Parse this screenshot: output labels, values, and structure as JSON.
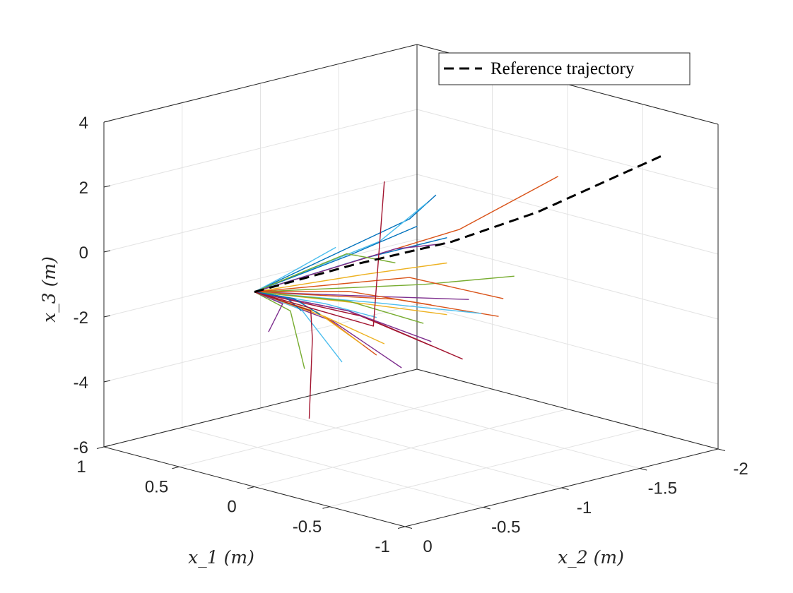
{
  "chart_data": {
    "type": "line3d",
    "xlabel": "x_1 (m)",
    "ylabel": "x_2 (m)",
    "zlabel": "x_3 (m)",
    "axes": {
      "x1": {
        "lim": [
          -1,
          1
        ],
        "ticks": [
          1,
          0.5,
          0,
          -0.5,
          -1
        ],
        "tick_labels": [
          "1",
          "0.5",
          "0",
          "-0.5",
          "-1"
        ]
      },
      "x2": {
        "lim": [
          -2,
          0
        ],
        "ticks": [
          0,
          -0.5,
          -1,
          -1.5,
          -2
        ],
        "tick_labels": [
          "0",
          "-0.5",
          "-1",
          "-1.5",
          "-2"
        ]
      },
      "x3": {
        "lim": [
          -6,
          4
        ],
        "ticks": [
          4,
          2,
          0,
          -2,
          -4,
          -6
        ],
        "tick_labels": [
          "4",
          "2",
          "0",
          "-2",
          "-4",
          "-6"
        ]
      }
    },
    "grid": true,
    "legend": {
      "position": "top-right",
      "entries": [
        "Reference trajectory"
      ]
    },
    "reference": {
      "name": "Reference trajectory",
      "color": "#000000",
      "style": "dashed",
      "points": [
        [
          0,
          0,
          0
        ],
        [
          0,
          -0.63,
          0.08
        ],
        [
          0,
          -1.26,
          0.04
        ],
        [
          -0.3,
          -1.52,
          1.01
        ],
        [
          -0.6,
          -2.03,
          2.51
        ]
      ]
    },
    "trajectories": [
      {
        "color": "#D95319",
        "points": [
          [
            0,
            0,
            0
          ],
          [
            0,
            -1.31,
            0.36
          ],
          [
            0,
            -1.94,
            1.24
          ]
        ]
      },
      {
        "color": "#0072BD",
        "points": [
          [
            0,
            0,
            0
          ],
          [
            0,
            -0.99,
            1.06
          ],
          [
            0,
            -1.16,
            1.6
          ]
        ]
      },
      {
        "color": "#4DBEEE",
        "points": [
          [
            0,
            0,
            0
          ],
          [
            0,
            -0.8,
            0.6
          ],
          [
            0,
            -1.1,
            1.42
          ]
        ]
      },
      {
        "color": "#0072BD",
        "points": [
          [
            0,
            0,
            0
          ],
          [
            0,
            -0.6,
            0.4
          ],
          [
            0,
            -1.04,
            0.78
          ]
        ]
      },
      {
        "color": "#0072BD",
        "points": [
          [
            0,
            0,
            0
          ],
          [
            0,
            -0.7,
            0.2
          ],
          [
            0,
            -1.23,
            0.2
          ]
        ]
      },
      {
        "color": "#7E2F8E",
        "points": [
          [
            0,
            0,
            0
          ],
          [
            0,
            -0.9,
            0.25
          ],
          [
            0,
            -1.22,
            0.03
          ]
        ]
      },
      {
        "color": "#4DBEEE",
        "points": [
          [
            0,
            0,
            0
          ],
          [
            0,
            -0.2,
            0.27
          ],
          [
            0,
            -0.52,
            0.75
          ]
        ]
      },
      {
        "color": "#77AC30",
        "points": [
          [
            0,
            0,
            0
          ],
          [
            0,
            -0.59,
            0.47
          ],
          [
            0,
            -0.9,
            -0.18
          ]
        ]
      },
      {
        "color": "#EDB120",
        "points": [
          [
            0,
            0,
            0
          ],
          [
            0,
            -0.7,
            -0.3
          ],
          [
            0,
            -1.23,
            -0.58
          ]
        ]
      },
      {
        "color": "#77AC30",
        "points": [
          [
            0,
            0,
            0
          ],
          [
            0,
            -1.08,
            -1.06
          ],
          [
            0,
            -1.66,
            -1.5
          ]
        ]
      },
      {
        "color": "#D95319",
        "points": [
          [
            0,
            0,
            0
          ],
          [
            0,
            -0.99,
            -0.74
          ],
          [
            0,
            -1.59,
            -2.11
          ]
        ]
      },
      {
        "color": "#7E2F8E",
        "points": [
          [
            0,
            0,
            0
          ],
          [
            0,
            -0.8,
            -1.1
          ],
          [
            0,
            -1.37,
            -1.87
          ]
        ]
      },
      {
        "color": "#D95319",
        "points": [
          [
            0,
            0,
            0
          ],
          [
            0,
            -0.9,
            -1.3
          ],
          [
            0,
            -1.56,
            -2.62
          ]
        ]
      },
      {
        "color": "#4DBEEE",
        "points": [
          [
            0,
            0,
            0
          ],
          [
            0,
            -0.8,
            -1.3
          ],
          [
            0,
            -1.45,
            -2.4
          ]
        ]
      },
      {
        "color": "#EDB120",
        "points": [
          [
            0,
            0,
            0
          ],
          [
            0,
            -0.7,
            -1.2
          ],
          [
            0,
            -1.23,
            -2.17
          ]
        ]
      },
      {
        "color": "#77AC30",
        "points": [
          [
            0,
            0,
            0
          ],
          [
            0,
            -0.6,
            -1.0
          ],
          [
            0,
            -1.08,
            -2.26
          ]
        ]
      },
      {
        "color": "#A2142F",
        "points": [
          [
            0,
            0,
            0
          ],
          [
            0,
            -0.6,
            -1.3
          ],
          [
            0,
            -1.13,
            -3.01
          ]
        ]
      },
      {
        "color": "#A2142F",
        "points": [
          [
            0,
            0,
            0
          ],
          [
            0,
            -0.7,
            -1.6
          ],
          [
            0,
            -1.33,
            -3.66
          ]
        ]
      },
      {
        "color": "#7E2F8E",
        "points": [
          [
            0,
            0,
            0
          ],
          [
            0,
            -0.5,
            -1.5
          ],
          [
            0,
            -0.94,
            -3.46
          ]
        ]
      },
      {
        "color": "#7E2F8E",
        "points": [
          [
            0,
            0,
            0
          ],
          [
            0,
            -0.6,
            -1.3
          ],
          [
            0,
            -1.13,
            -2.88
          ]
        ]
      },
      {
        "color": "#D95319",
        "points": [
          [
            0,
            0,
            0
          ],
          [
            0,
            -0.45,
            -1.3
          ],
          [
            0,
            -0.78,
            -2.88
          ]
        ]
      },
      {
        "color": "#EDB120",
        "points": [
          [
            0,
            0,
            0
          ],
          [
            0,
            -0.4,
            -1.1
          ],
          [
            0,
            -0.69,
            -2.45
          ]
        ]
      },
      {
        "color": "#4DBEEE",
        "points": [
          [
            0,
            0,
            0
          ],
          [
            0,
            -0.3,
            -0.9
          ],
          [
            0,
            -0.56,
            -2.83
          ]
        ]
      },
      {
        "color": "#77AC30",
        "points": [
          [
            0,
            0,
            0
          ],
          [
            0,
            -0.23,
            -0.86
          ],
          [
            0,
            -0.32,
            -2.75
          ]
        ]
      },
      {
        "color": "#7E2F8E",
        "points": [
          [
            0,
            0,
            0
          ],
          [
            0,
            -0.18,
            -0.58
          ],
          [
            0,
            -0.09,
            -1.34
          ]
        ]
      },
      {
        "color": "#4DBEEE",
        "points": [
          [
            0,
            0,
            0
          ],
          [
            0,
            -0.45,
            -0.9
          ],
          [
            0,
            -0.78,
            -1.72
          ]
        ]
      },
      {
        "color": "#D95319",
        "points": [
          [
            0,
            0,
            0
          ],
          [
            0,
            -0.6,
            -0.7
          ],
          [
            0,
            -1.13,
            -1.75
          ]
        ]
      },
      {
        "color": "#EDB120",
        "points": [
          [
            0,
            0,
            0
          ],
          [
            0,
            -0.45,
            -1.3
          ],
          [
            0,
            -0.83,
            -2.59
          ]
        ]
      },
      {
        "color": "#0072BD",
        "points": [
          [
            0,
            0,
            0
          ],
          [
            0,
            -0.25,
            -0.5
          ],
          [
            0,
            -0.42,
            -1.2
          ]
        ]
      },
      {
        "color": "#0072BD",
        "points": [
          [
            0,
            0,
            0
          ],
          [
            0,
            -0.2,
            -0.4
          ],
          [
            0,
            -0.3,
            -0.94
          ]
        ]
      },
      {
        "color": "#A2142F",
        "points": [
          [
            0,
            0,
            0
          ],
          [
            0,
            -0.76,
            -1.96
          ],
          [
            0,
            -0.83,
            2.41
          ]
        ]
      },
      {
        "color": "#A2142F",
        "points": [
          [
            0,
            0,
            0
          ],
          [
            0,
            -0.36,
            -1.01
          ],
          [
            0,
            -0.37,
            -1.89
          ],
          [
            0,
            -0.35,
            -4.32
          ]
        ]
      }
    ]
  }
}
